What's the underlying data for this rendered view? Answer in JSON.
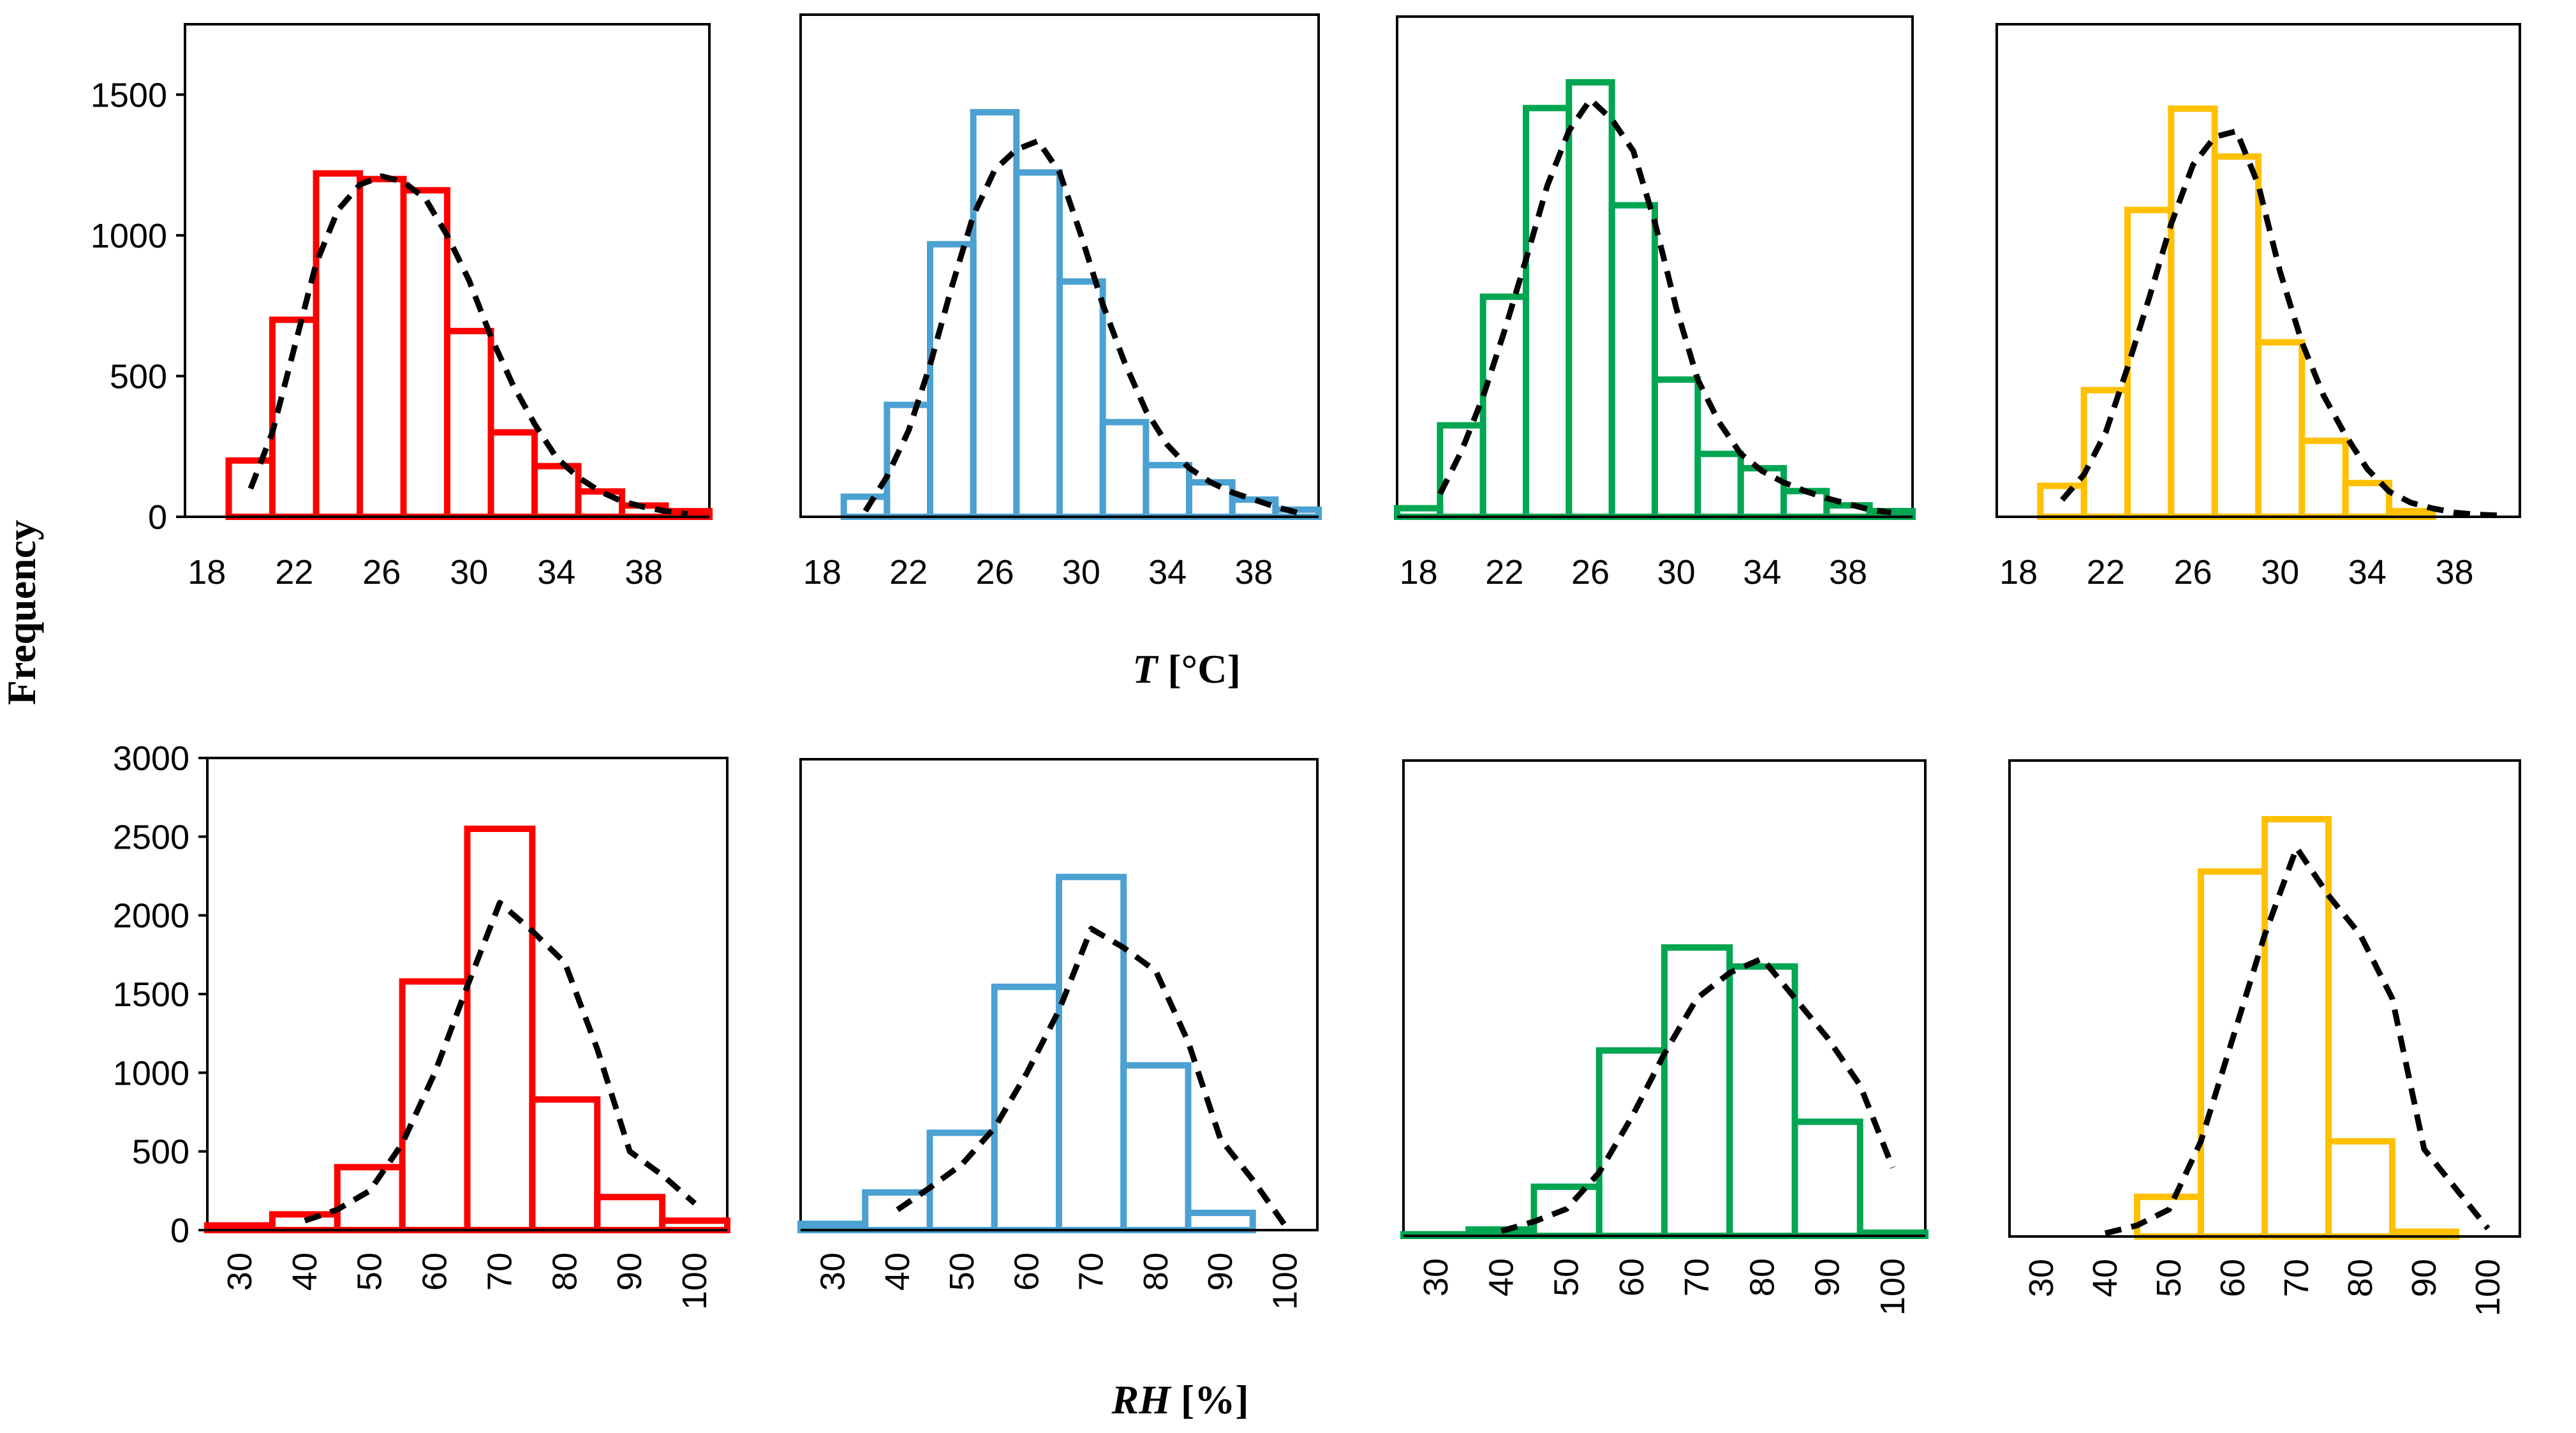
{
  "figure": {
    "ylabel": "Frequency",
    "xlabel_T_var": "T",
    "xlabel_T_unit": " [°C]",
    "xlabel_RH_var": "RH",
    "xlabel_RH_unit": " [%]"
  },
  "series_colors": [
    "#ff0000",
    "#4ba1d1",
    "#00a651",
    "#ffc000"
  ],
  "fit_color": "#000000",
  "chart_data": [
    {
      "type": "bar",
      "subtype": "histogram-with-fit",
      "row": "T",
      "color_index": 0,
      "xlabel": "T [°C]",
      "ylabel": "Frequency",
      "xlim": [
        17,
        41
      ],
      "ylim": [
        0,
        1750
      ],
      "xticks": [
        "18",
        "22",
        "26",
        "30",
        "34",
        "38"
      ],
      "yticks": [
        "0",
        "500",
        "1000",
        "1500"
      ],
      "bin_edges": [
        19,
        21,
        23,
        25,
        27,
        29,
        31,
        33,
        35,
        37,
        39,
        41
      ],
      "values": [
        200,
        700,
        1220,
        1200,
        1160,
        660,
        300,
        180,
        90,
        40,
        20
      ],
      "fit_x": [
        20,
        21,
        22,
        23,
        24,
        25,
        26,
        27,
        28,
        29,
        30,
        31,
        32,
        33,
        34,
        35,
        36,
        37,
        38,
        39,
        40
      ],
      "fit_y": [
        100,
        300,
        600,
        900,
        1090,
        1180,
        1210,
        1190,
        1130,
        1000,
        840,
        640,
        470,
        330,
        210,
        140,
        90,
        55,
        35,
        20,
        10
      ]
    },
    {
      "type": "bar",
      "subtype": "histogram-with-fit",
      "row": "T",
      "color_index": 1,
      "xlabel": "T [°C]",
      "ylabel": "Frequency",
      "xlim": [
        17,
        41
      ],
      "ylim": [
        0,
        1750
      ],
      "xticks": [
        "18",
        "22",
        "26",
        "30",
        "34",
        "38"
      ],
      "yticks": [
        "0",
        "500",
        "1000",
        "1500"
      ],
      "bin_edges": [
        19,
        21,
        23,
        25,
        27,
        29,
        31,
        33,
        35,
        37,
        39,
        41
      ],
      "values": [
        70,
        390,
        950,
        1410,
        1200,
        820,
        330,
        180,
        120,
        60,
        25
      ],
      "fit_x": [
        20,
        21,
        22,
        23,
        24,
        25,
        26,
        27,
        28,
        29,
        30,
        31,
        32,
        33,
        34,
        35,
        36,
        37,
        38,
        39,
        40
      ],
      "fit_y": [
        20,
        140,
        300,
        530,
        800,
        1050,
        1210,
        1280,
        1310,
        1200,
        980,
        740,
        540,
        370,
        250,
        170,
        120,
        85,
        60,
        35,
        15
      ]
    },
    {
      "type": "bar",
      "subtype": "histogram-with-fit",
      "row": "T",
      "color_index": 2,
      "xlabel": "T [°C]",
      "ylabel": "Frequency",
      "xlim": [
        17,
        41
      ],
      "ylim": [
        0,
        1750
      ],
      "xticks": [
        "18",
        "22",
        "26",
        "30",
        "34",
        "38"
      ],
      "yticks": [
        "0",
        "500",
        "1000",
        "1500"
      ],
      "bin_edges": [
        17,
        19,
        21,
        23,
        25,
        27,
        29,
        31,
        33,
        35,
        37,
        39,
        41
      ],
      "values": [
        30,
        320,
        770,
        1430,
        1520,
        1090,
        480,
        220,
        170,
        90,
        40,
        20
      ],
      "fit_x": [
        19,
        20,
        21,
        22,
        23,
        24,
        25,
        26,
        27,
        28,
        29,
        30,
        31,
        32,
        33,
        34,
        35,
        36,
        37,
        38,
        39,
        40
      ],
      "fit_y": [
        80,
        230,
        420,
        650,
        900,
        1160,
        1350,
        1460,
        1390,
        1280,
        1030,
        730,
        480,
        330,
        220,
        160,
        120,
        90,
        65,
        45,
        25,
        15
      ]
    },
    {
      "type": "bar",
      "subtype": "histogram-with-fit",
      "row": "T",
      "color_index": 3,
      "xlabel": "T [°C]",
      "ylabel": "Frequency",
      "xlim": [
        17,
        41
      ],
      "ylim": [
        0,
        1750
      ],
      "xticks": [
        "18",
        "22",
        "26",
        "30",
        "34",
        "38"
      ],
      "yticks": [
        "0",
        "500",
        "1000",
        "1500"
      ],
      "bin_edges": [
        19,
        21,
        23,
        25,
        27,
        29,
        31,
        33,
        35,
        37
      ],
      "values": [
        110,
        450,
        1090,
        1450,
        1280,
        620,
        270,
        120,
        20
      ],
      "fit_x": [
        20,
        21,
        22,
        23,
        24,
        25,
        26,
        27,
        28,
        29,
        30,
        31,
        32,
        33,
        34,
        35,
        36,
        37,
        38,
        39,
        40
      ],
      "fit_y": [
        60,
        150,
        300,
        530,
        780,
        1040,
        1250,
        1350,
        1370,
        1180,
        870,
        620,
        430,
        290,
        170,
        90,
        50,
        30,
        15,
        8,
        5
      ]
    },
    {
      "type": "bar",
      "subtype": "histogram-with-fit",
      "row": "RH",
      "color_index": 0,
      "xlabel": "RH [%]",
      "ylabel": "Frequency",
      "xlim": [
        25,
        105
      ],
      "ylim": [
        0,
        3000
      ],
      "xticks": [
        "30",
        "40",
        "50",
        "60",
        "70",
        "80",
        "90",
        "100"
      ],
      "yticks": [
        "0",
        "500",
        "1000",
        "1500",
        "2000",
        "2500",
        "3000"
      ],
      "bin_edges": [
        25,
        35,
        45,
        55,
        65,
        75,
        85,
        95,
        105
      ],
      "values": [
        30,
        100,
        400,
        1580,
        2550,
        830,
        210,
        60
      ],
      "fit_x": [
        40,
        45,
        50,
        55,
        60,
        65,
        70,
        75,
        80,
        85,
        90,
        95,
        100
      ],
      "fit_y": [
        60,
        130,
        250,
        550,
        1000,
        1550,
        2080,
        1900,
        1700,
        1150,
        500,
        350,
        170
      ]
    },
    {
      "type": "bar",
      "subtype": "histogram-with-fit",
      "row": "RH",
      "color_index": 1,
      "xlabel": "RH [%]",
      "ylabel": "Frequency",
      "xlim": [
        25,
        105
      ],
      "ylim": [
        0,
        3000
      ],
      "xticks": [
        "30",
        "40",
        "50",
        "60",
        "70",
        "80",
        "90",
        "100"
      ],
      "yticks": [
        "0",
        "500",
        "1000",
        "1500",
        "2000",
        "2500",
        "3000"
      ],
      "bin_edges": [
        25,
        35,
        45,
        55,
        65,
        75,
        85,
        95
      ],
      "values": [
        40,
        240,
        620,
        1550,
        2250,
        1050,
        110
      ],
      "fit_x": [
        40,
        45,
        50,
        55,
        60,
        65,
        70,
        75,
        80,
        85,
        90,
        95,
        100
      ],
      "fit_y": [
        130,
        270,
        420,
        650,
        1000,
        1400,
        1920,
        1800,
        1650,
        1200,
        580,
        320,
        30
      ]
    },
    {
      "type": "bar",
      "subtype": "histogram-with-fit",
      "row": "RH",
      "color_index": 2,
      "xlabel": "RH [%]",
      "ylabel": "Frequency",
      "xlim": [
        25,
        105
      ],
      "ylim": [
        0,
        3000
      ],
      "xticks": [
        "30",
        "40",
        "50",
        "60",
        "70",
        "80",
        "90",
        "100"
      ],
      "yticks": [
        "0",
        "500",
        "1000",
        "1500",
        "2000",
        "2500",
        "3000"
      ],
      "bin_edges": [
        25,
        35,
        45,
        55,
        65,
        75,
        85,
        95,
        105
      ],
      "values": [
        10,
        40,
        310,
        1170,
        1820,
        1700,
        720,
        20
      ],
      "fit_x": [
        40,
        45,
        50,
        55,
        60,
        65,
        70,
        75,
        80,
        85,
        90,
        95,
        100
      ],
      "fit_y": [
        30,
        90,
        170,
        400,
        750,
        1150,
        1500,
        1660,
        1750,
        1500,
        1250,
        950,
        430
      ]
    },
    {
      "type": "bar",
      "subtype": "histogram-with-fit",
      "row": "RH",
      "color_index": 3,
      "xlabel": "RH [%]",
      "ylabel": "Frequency",
      "xlim": [
        25,
        105
      ],
      "ylim": [
        0,
        3000
      ],
      "xticks": [
        "30",
        "40",
        "50",
        "60",
        "70",
        "80",
        "90",
        "100"
      ],
      "yticks": [
        "0",
        "500",
        "1000",
        "1500",
        "2000",
        "2500",
        "3000"
      ],
      "bin_edges": [
        45,
        55,
        65,
        75,
        85,
        95
      ],
      "values": [
        250,
        2300,
        2630,
        600,
        30
      ],
      "fit_x": [
        40,
        45,
        50,
        55,
        60,
        65,
        70,
        75,
        80,
        85,
        90,
        95,
        100
      ],
      "fit_y": [
        20,
        70,
        170,
        600,
        1250,
        1900,
        2450,
        2150,
        1900,
        1500,
        550,
        300,
        50
      ]
    }
  ]
}
